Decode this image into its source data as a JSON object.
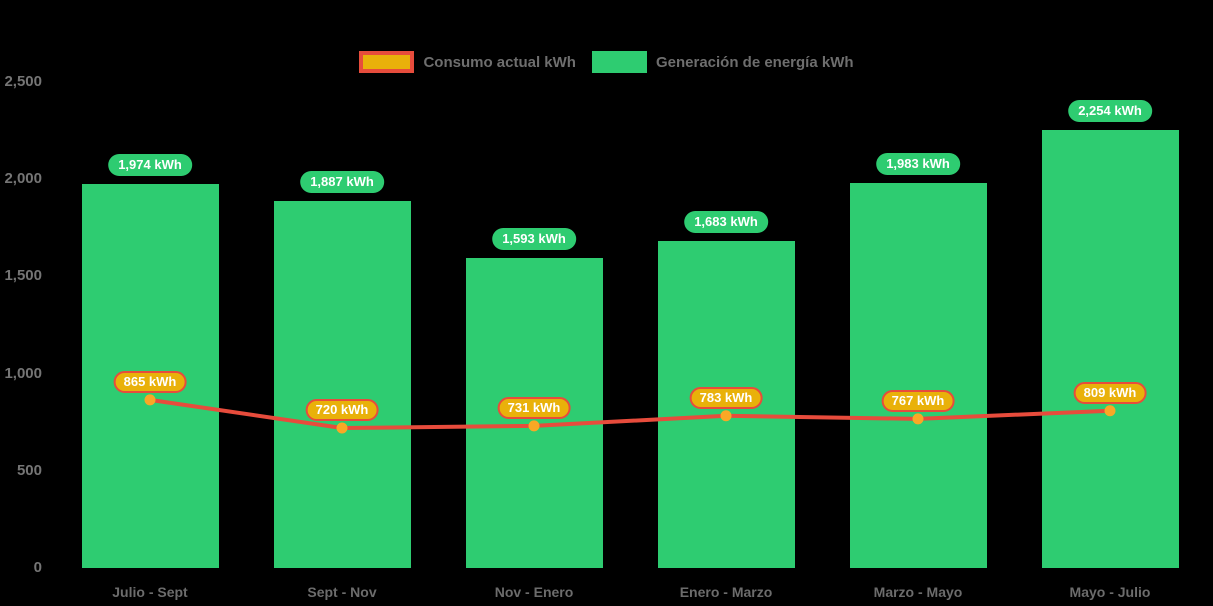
{
  "chart_data": {
    "type": "bar+line",
    "background": "#000000",
    "grid": false,
    "legend_position": "top-center",
    "categories": [
      "Julio - Sept",
      "Sept - Nov",
      "Nov - Enero",
      "Enero - Marzo",
      "Marzo - Mayo",
      "Mayo - Julio"
    ],
    "series": [
      {
        "name": "Consumo actual kWh",
        "type": "line",
        "values": [
          865,
          720,
          731,
          783,
          767,
          809
        ],
        "labels": [
          "865 kWh",
          "720 kWh",
          "731 kWh",
          "783 kWh",
          "767 kWh",
          "809 kWh"
        ],
        "line_color": "#e74c3c",
        "marker_color": "#f9a825",
        "label_bg": "#e9b10a",
        "label_border": "#e74c3c"
      },
      {
        "name": "Generación de energía kWh",
        "type": "bar",
        "values": [
          1974,
          1887,
          1593,
          1683,
          1983,
          2254
        ],
        "labels": [
          "1,974 kWh",
          "1,887 kWh",
          "1,593 kWh",
          "1,683 kWh",
          "1,983 kWh",
          "2,254 kWh"
        ],
        "color": "#2ecc71"
      }
    ],
    "y_axis": {
      "ticks": [
        "2,500",
        "2,000",
        "1,500",
        "1,000",
        "500",
        "0"
      ],
      "min": 0,
      "max": 2500
    },
    "axis_text_color": "#6e6e6e",
    "value_suffix": "kWh"
  }
}
